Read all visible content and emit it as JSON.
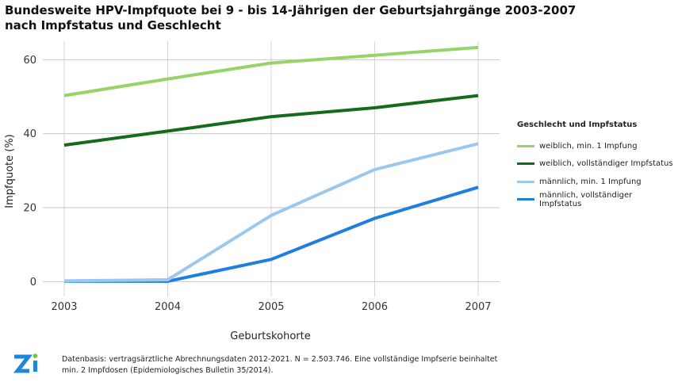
{
  "title": {
    "line1": "Bundesweite HPV-Impfquote bei 9 - bis 14-Jährigen der Geburtsjahrgänge 2003-2007",
    "line2": "nach Impfstatus und Geschlecht"
  },
  "footnote": "Datenbasis: vertragsärztliche Abrechnungsdaten 2012-2021. N = 2.503.746. Eine vollständige Impfserie beinhaltet min. 2 Impfdosen (Epidemiologisches Bulletin 35/2014).",
  "logo": {
    "text": "Zi",
    "color": "#1f86d9",
    "accent": "#77c043"
  },
  "chart_data": {
    "type": "line",
    "xlabel": "Geburtskohorte",
    "ylabel": "Impfquote (%)",
    "categories": [
      "2003",
      "2004",
      "2005",
      "2006",
      "2007"
    ],
    "ylim": [
      -4,
      65
    ],
    "yticks": [
      0,
      20,
      40,
      60
    ],
    "grid": true,
    "legend_title": "Geschlecht und Impfstatus",
    "legend_position": "right",
    "series": [
      {
        "name": "weiblich, min. 1 Impfung",
        "color": "#96d46a",
        "values": [
          50.3,
          54.8,
          59.1,
          61.2,
          63.3
        ]
      },
      {
        "name": "weiblich, vollständiger Impfstatus",
        "color": "#136b1b",
        "values": [
          36.9,
          40.7,
          44.6,
          47.0,
          50.3
        ]
      },
      {
        "name": "männlich, min. 1 Impfung",
        "color": "#9cc7ee",
        "values": [
          0.2,
          0.5,
          17.9,
          30.3,
          37.3
        ]
      },
      {
        "name": "männlich, vollständiger Impfstatus",
        "color": "#1f7fe0",
        "values": [
          0.1,
          0.1,
          6.0,
          17.1,
          25.5
        ]
      }
    ]
  }
}
